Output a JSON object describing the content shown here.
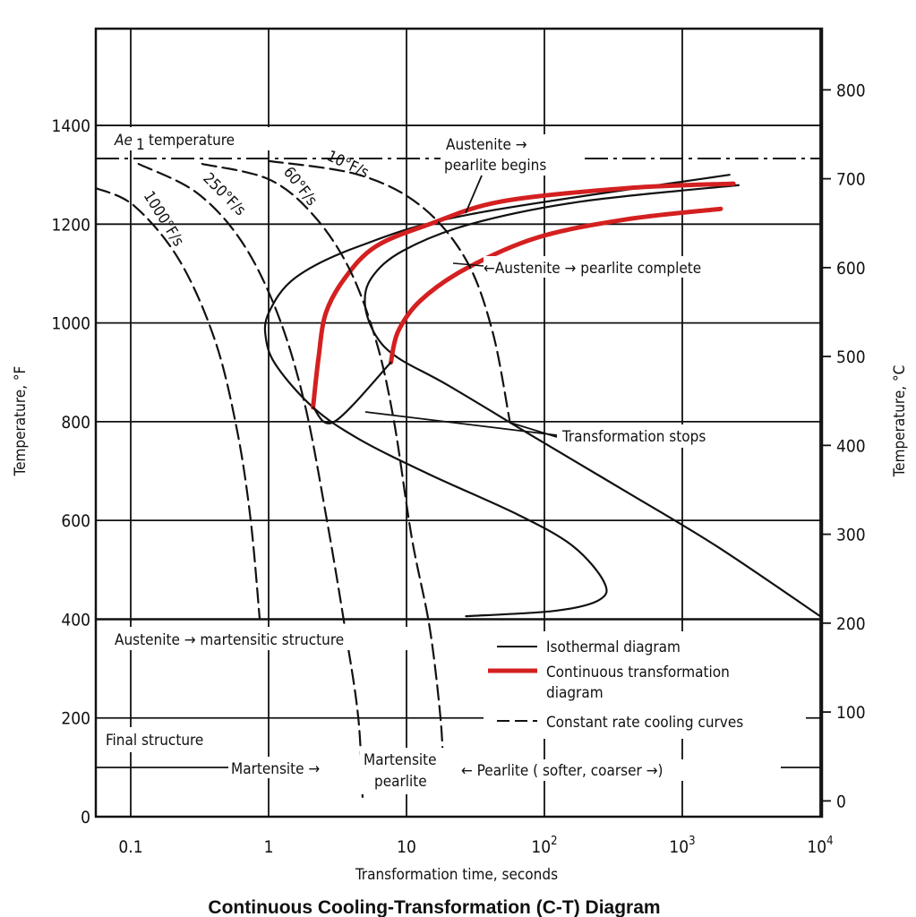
{
  "chart_data": {
    "type": "line",
    "title": "Continuous Cooling-Transformation (C-T) Diagram",
    "xlabel": "Transformation time, seconds",
    "ylabel": "Temperature, °F",
    "ylabel_right": "Temperature, °C",
    "xscale": "log",
    "xlim": [
      0.055,
      10000
    ],
    "ylim": [
      0,
      1600
    ],
    "ylim_right_c": [
      -18,
      870
    ],
    "grid": true,
    "x_ticks": [
      {
        "value": 0.1,
        "label": "0.1"
      },
      {
        "value": 1,
        "label": "1"
      },
      {
        "value": 10,
        "label": "10"
      },
      {
        "value": 100,
        "label": "10",
        "sup": "2"
      },
      {
        "value": 1000,
        "label": "10",
        "sup": "3"
      },
      {
        "value": 10000,
        "label": "10",
        "sup": "4"
      }
    ],
    "y_ticks": [
      0,
      200,
      400,
      600,
      800,
      1000,
      1200,
      1400
    ],
    "y_ticks_right_c": [
      0,
      100,
      200,
      300,
      400,
      500,
      600,
      700,
      800
    ],
    "series": [
      {
        "name": "isothermal-start",
        "style": "solid",
        "color": "#111111",
        "points": [
          [
            2200,
            1300
          ],
          [
            29,
            1220
          ],
          [
            4.5,
            1155
          ],
          [
            1.57,
            1092
          ],
          [
            1.0,
            1020
          ],
          [
            0.96,
            965
          ],
          [
            1.16,
            910
          ],
          [
            2.1,
            829
          ],
          [
            4.5,
            765
          ],
          [
            14.7,
            693
          ],
          [
            65,
            611
          ],
          [
            161,
            548
          ],
          [
            271,
            475
          ],
          [
            250,
            439
          ],
          [
            120,
            417
          ],
          [
            27,
            406
          ]
        ]
      },
      {
        "name": "isothermal-finish",
        "style": "solid",
        "color": "#111111",
        "points": [
          [
            2560,
            1279
          ],
          [
            187,
            1246
          ],
          [
            29,
            1200
          ],
          [
            9.4,
            1146
          ],
          [
            5.6,
            1092
          ],
          [
            5.0,
            1037
          ],
          [
            6.0,
            974
          ],
          [
            8.7,
            929
          ],
          [
            19.9,
            874
          ],
          [
            89,
            765
          ],
          [
            398,
            657
          ],
          [
            1770,
            548
          ],
          [
            10000,
            406
          ]
        ]
      },
      {
        "name": "continuous-start",
        "style": "red",
        "color": "#d42020",
        "points": [
          [
            2.1,
            829
          ],
          [
            2.3,
            929
          ],
          [
            2.6,
            1020
          ],
          [
            3.6,
            1092
          ],
          [
            6.0,
            1155
          ],
          [
            14.7,
            1200
          ],
          [
            49,
            1246
          ],
          [
            398,
            1273
          ],
          [
            2350,
            1282
          ]
        ]
      },
      {
        "name": "continuous-finish",
        "style": "red",
        "color": "#d42020",
        "points": [
          [
            7.7,
            920
          ],
          [
            8.7,
            983
          ],
          [
            12.7,
            1046
          ],
          [
            27,
            1110
          ],
          [
            89,
            1173
          ],
          [
            398,
            1210
          ],
          [
            1900,
            1231
          ]
        ]
      },
      {
        "name": "cooling-1000",
        "style": "dashed",
        "color": "#111111",
        "points": [
          [
            0.056,
            1273
          ],
          [
            0.106,
            1237
          ],
          [
            0.224,
            1128
          ],
          [
            0.408,
            965
          ],
          [
            0.59,
            783
          ],
          [
            0.74,
            602
          ],
          [
            0.86,
            403
          ]
        ]
      },
      {
        "name": "cooling-250",
        "style": "dashed",
        "color": "#111111",
        "points": [
          [
            0.114,
            1322
          ],
          [
            0.3,
            1264
          ],
          [
            0.64,
            1164
          ],
          [
            1.16,
            1019
          ],
          [
            1.82,
            838
          ],
          [
            2.64,
            602
          ],
          [
            3.57,
            384
          ],
          [
            4.46,
            203
          ],
          [
            4.8,
            40
          ]
        ]
      },
      {
        "name": "cooling-60",
        "style": "dashed",
        "color": "#111111",
        "points": [
          [
            0.33,
            1322
          ],
          [
            1.0,
            1291
          ],
          [
            2.1,
            1219
          ],
          [
            3.84,
            1110
          ],
          [
            6.0,
            965
          ],
          [
            8.1,
            802
          ],
          [
            10.9,
            566
          ],
          [
            14.7,
            384
          ],
          [
            17.6,
            203
          ],
          [
            18.5,
            94
          ]
        ]
      },
      {
        "name": "cooling-10",
        "style": "dashed",
        "color": "#111111",
        "points": [
          [
            1.0,
            1328
          ],
          [
            4.5,
            1300
          ],
          [
            12.7,
            1237
          ],
          [
            27,
            1128
          ],
          [
            42,
            983
          ],
          [
            56,
            802
          ]
        ]
      },
      {
        "name": "transformation-stop",
        "style": "solid",
        "color": "#111111",
        "points": [
          [
            2.1,
            829
          ],
          [
            3.0,
            800
          ],
          [
            7.7,
            920
          ]
        ]
      }
    ],
    "ae1_temperature_f": 1333,
    "ms_temperature_f": 400,
    "annotations": {
      "ae1": "Ae",
      "ae1_sub": "1",
      "ae1_rest": "temperature",
      "rate_1000": "1000°F/s",
      "rate_250": "250°F/s",
      "rate_60": "60°F/s",
      "rate_10": "10°F/s",
      "pearlite_begins_1": "Austenite →",
      "pearlite_begins_2": "pearlite begins",
      "pearlite_complete": "←Austenite → pearlite complete",
      "transformation_stops": "Transformation stops",
      "martensitic": "Austenite → martensitic structure",
      "final_structure": "Final structure",
      "martensite": "Martensite →",
      "martensite_pearlite_1": "Martensite",
      "martensite_pearlite_2": "pearlite",
      "pearlite": "← Pearlite ( softer, coarser →)"
    },
    "legend": {
      "placement": "bottom-right",
      "entries": [
        {
          "label": "Isothermal diagram",
          "style": "solid"
        },
        {
          "label": "Continuous transformation",
          "label2": "diagram",
          "style": "red"
        },
        {
          "label": "Constant rate cooling curves",
          "style": "dashed"
        }
      ]
    }
  }
}
